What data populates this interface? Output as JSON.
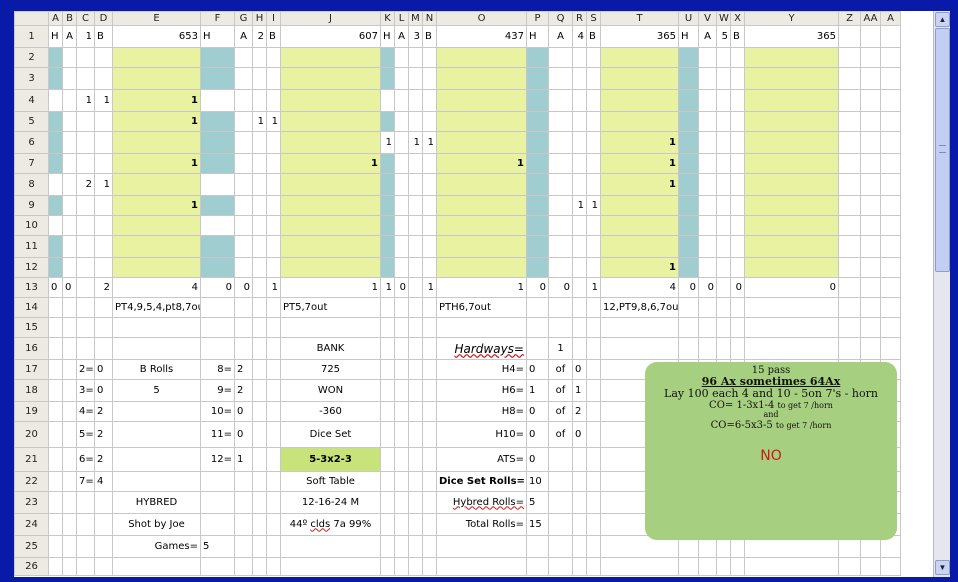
{
  "columns": [
    "A",
    "B",
    "C",
    "D",
    "E",
    "F",
    "G",
    "H",
    "I",
    "J",
    "K",
    "L",
    "M",
    "N",
    "O",
    "P",
    "Q",
    "R",
    "S",
    "T",
    "U",
    "V",
    "W",
    "X",
    "Y",
    "Z",
    "AA",
    "A"
  ],
  "rows": [
    "1",
    "2",
    "3",
    "4",
    "5",
    "6",
    "7",
    "8",
    "9",
    "10",
    "11",
    "12",
    "13",
    "14",
    "15",
    "16",
    "17",
    "18",
    "19",
    "20",
    "21",
    "22",
    "23",
    "24",
    "25",
    "26"
  ],
  "row1": [
    {
      "h": "H",
      "a": "A",
      "n": "1",
      "b": "B",
      "total": "653"
    },
    {
      "h": "H",
      "a": "A",
      "n": "2",
      "b": "B",
      "total": "607"
    },
    {
      "h": "H",
      "a": "A",
      "n": "3",
      "b": "B",
      "total": "437"
    },
    {
      "h": "H",
      "a": "A",
      "n": "4",
      "b": "B",
      "total": "365"
    },
    {
      "h": "H",
      "a": "A",
      "n": "5",
      "b": "B",
      "total": "365"
    }
  ],
  "rolls": {
    "C4": "1",
    "D4": "1",
    "E4": "1",
    "E5": "1",
    "H5": "1",
    "I5": "1",
    "K6": "1",
    "M6": "1",
    "N6": "1",
    "T6": "1",
    "E7": "1",
    "J7": "1",
    "O7": "1",
    "T7": "1",
    "C8": "2",
    "D8": "1",
    "T8": "1",
    "E9": "1",
    "R9": "1",
    "S9": "1",
    "T12": "1"
  },
  "row13": {
    "A": "0",
    "B": "0",
    "D": "2",
    "E": "4",
    "F": "0",
    "G": "0",
    "I": "1",
    "J": "1",
    "K": "1",
    "L": "0",
    "N": "1",
    "O": "1",
    "P": "0",
    "Q": "0",
    "S": "1",
    "T": "4",
    "U": "0",
    "V": "0",
    "X": "0",
    "Y": "0"
  },
  "row14": {
    "E": "PT4,9,5,4,pt8,7out",
    "J": "PT5,7out",
    "O": "PTH6,7out",
    "T": "12,PT9,8,6,7out"
  },
  "counts_left": [
    {
      "row": "17",
      "label": "2=",
      "value": "0"
    },
    {
      "row": "18",
      "label": "3=",
      "value": "0"
    },
    {
      "row": "19",
      "label": "4=",
      "value": "2"
    },
    {
      "row": "20",
      "label": "5=",
      "value": "2"
    },
    {
      "row": "21",
      "label": "6=",
      "value": "2"
    },
    {
      "row": "22",
      "label": "7=",
      "value": "4"
    }
  ],
  "counts_right": [
    {
      "row": "17",
      "label": "8=",
      "value": "2"
    },
    {
      "row": "18",
      "label": "9=",
      "value": "2"
    },
    {
      "row": "19",
      "label": "10=",
      "value": "0"
    },
    {
      "row": "20",
      "label": "11=",
      "value": "0"
    },
    {
      "row": "21",
      "label": "12=",
      "value": "1"
    }
  ],
  "b_rolls": {
    "label": "B Rolls",
    "value": "5"
  },
  "hybred": "HYBRED",
  "shot_by": "Shot by Joe",
  "games": {
    "label": "Games=",
    "value": "5"
  },
  "bank": {
    "label": "BANK",
    "value": "725"
  },
  "won": {
    "label": "WON",
    "value": "-360"
  },
  "dice_set": {
    "label": "Dice Set",
    "value": "5-3x2-3"
  },
  "table_type": "Soft Table",
  "date": "12-16-24 M",
  "weather": {
    "pre": "44º ",
    "mid": "clds",
    "post": " 7a 99%"
  },
  "hardways": {
    "label": "Hardways=",
    "value": "1"
  },
  "hard_rows": [
    {
      "label": "H4=",
      "value": "0",
      "of": "of",
      "total": "0"
    },
    {
      "label": "H6=",
      "value": "1",
      "of": "of",
      "total": "1"
    },
    {
      "label": "H8=",
      "value": "0",
      "of": "of",
      "total": "2"
    },
    {
      "label": "H10=",
      "value": "0",
      "of": "of",
      "total": "0"
    }
  ],
  "ats": {
    "label": "ATS=",
    "value": "0"
  },
  "dice_set_rolls": {
    "label": "Dice Set Rolls=",
    "value": "10"
  },
  "hybred_rolls": {
    "label": "Hybred Rolls=",
    "value": "5"
  },
  "total_rolls": {
    "label": "Total Rolls=",
    "value": "15"
  },
  "note": {
    "line1": "15 pass",
    "line2": "96 Ax sometimes 64Ax",
    "line3": "Lay 100 each 4 and 10 - 5on 7's - horn",
    "line4a": "CO= 1-3x1-4 ",
    "line4b": "to get 7 /horn",
    "line5": "and",
    "line6a": "CO=6-5x3-5 ",
    "line6b": "to get 7 /horn",
    "verdict": "NO"
  },
  "colors": {
    "yellow": "#e8f2a0",
    "teal": "#9fcdd0",
    "lime": "#c8e37a",
    "note_bg": "#a6cf80",
    "frame": "#0a1aa8"
  }
}
